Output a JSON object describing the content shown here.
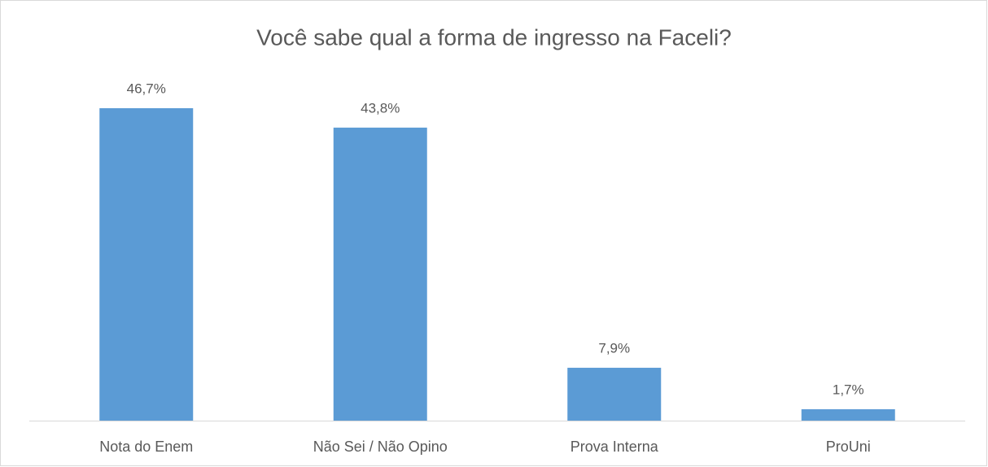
{
  "chart_data": {
    "type": "bar",
    "title": "Você sabe qual a forma de ingresso na Faceli?",
    "categories": [
      "Nota do Enem",
      "Não Sei / Não Opino",
      "Prova Interna",
      "ProUni"
    ],
    "values": [
      46.7,
      43.8,
      7.9,
      1.7
    ],
    "value_labels": [
      "46,7%",
      "43,8%",
      "7,9%",
      "1,7%"
    ],
    "color": "#5b9bd5"
  }
}
